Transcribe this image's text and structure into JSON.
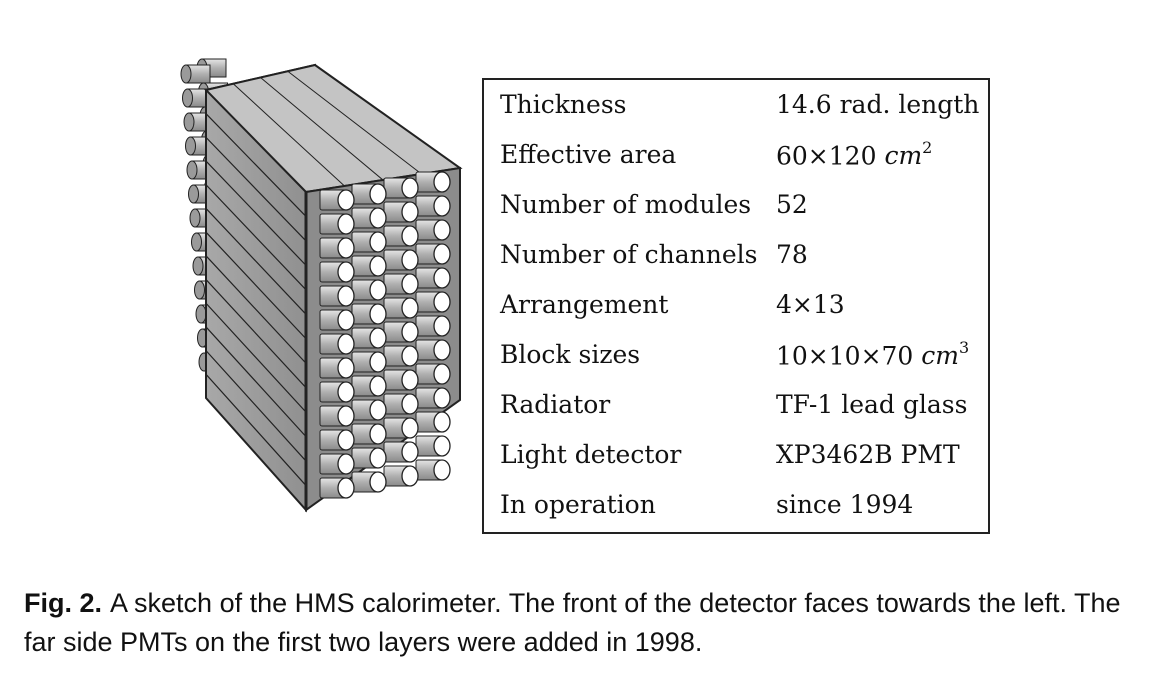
{
  "table": {
    "rows": [
      {
        "label": "Thickness",
        "value": "14.6 rad. length"
      },
      {
        "label": "Effective area",
        "value": "60×120 ",
        "unit": "cm",
        "unit_power": "2"
      },
      {
        "label": "Number of modules",
        "value": "52"
      },
      {
        "label": "Number of channels",
        "value": "78"
      },
      {
        "label": "Arrangement",
        "value": "4×13"
      },
      {
        "label": "Block sizes",
        "value": "10×10×70 ",
        "unit": "cm",
        "unit_power": "3"
      },
      {
        "label": "Radiator",
        "value": "TF-1 lead glass"
      },
      {
        "label": "Light detector",
        "value": "XP3462B PMT"
      },
      {
        "label": "In operation",
        "value": "since 1994"
      }
    ]
  },
  "caption": {
    "label": "Fig. 2.",
    "text": "A sketch of the HMS calorimeter. The front of the detector faces towards the left. The far side PMTs on the first two layers were added in 1998."
  },
  "sketch": {
    "colors": {
      "block_side": "#9e9e9e",
      "block_top": "#c4c4c4",
      "pmt_body": "#b8b8b8",
      "pmt_face": "#ffffff",
      "outline": "#222222"
    }
  }
}
